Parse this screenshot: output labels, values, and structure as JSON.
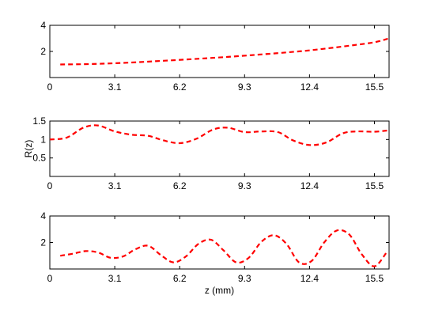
{
  "chart_data": [
    {
      "type": "line",
      "xlabel": "",
      "ylabel": "",
      "xlim": [
        0,
        16.2
      ],
      "ylim": [
        0,
        4
      ],
      "xticks": [
        0,
        3.1,
        6.2,
        9.3,
        12.4,
        15.5
      ],
      "xtick_labels": [
        "0",
        "3.1",
        "6.2",
        "9.3",
        "12.4",
        "15.5"
      ],
      "yticks": [
        2,
        4
      ],
      "ytick_labels": [
        "2",
        "4"
      ],
      "grid": false,
      "series": [
        {
          "color": "#ff0000",
          "style": "dashed",
          "x": [
            0.5,
            1.5,
            2.5,
            3.5,
            4.5,
            5.5,
            6.5,
            7.5,
            8.5,
            9.5,
            10.5,
            11.5,
            12.5,
            13.5,
            14.5,
            15.5,
            16.2
          ],
          "y": [
            1.0,
            1.02,
            1.06,
            1.12,
            1.2,
            1.29,
            1.38,
            1.48,
            1.58,
            1.7,
            1.82,
            1.95,
            2.1,
            2.28,
            2.48,
            2.7,
            3.0
          ]
        }
      ]
    },
    {
      "type": "line",
      "xlabel": "",
      "ylabel": "R(z)",
      "xlim": [
        0,
        16.2
      ],
      "ylim": [
        0,
        1.5
      ],
      "xticks": [
        0,
        3.1,
        6.2,
        9.3,
        12.4,
        15.5
      ],
      "xtick_labels": [
        "0",
        "3.1",
        "6.2",
        "9.3",
        "12.4",
        "15.5"
      ],
      "yticks": [
        0.5,
        1,
        1.5
      ],
      "ytick_labels": [
        "0.5",
        "1",
        "1.5"
      ],
      "grid": false,
      "series": [
        {
          "color": "#ff0000",
          "style": "dashed",
          "x": [
            0.0,
            0.8,
            1.6,
            2.3,
            3.1,
            3.9,
            4.7,
            5.4,
            6.2,
            7.0,
            7.8,
            8.5,
            9.3,
            10.1,
            10.9,
            11.6,
            12.4,
            13.2,
            14.0,
            14.7,
            15.5,
            16.2
          ],
          "y": [
            1.0,
            1.05,
            1.32,
            1.38,
            1.22,
            1.13,
            1.1,
            0.98,
            0.9,
            1.02,
            1.27,
            1.32,
            1.2,
            1.22,
            1.2,
            0.98,
            0.85,
            0.92,
            1.17,
            1.22,
            1.21,
            1.25
          ]
        }
      ]
    },
    {
      "type": "line",
      "xlabel": "z (mm)",
      "ylabel": "",
      "xlim": [
        0,
        16.2
      ],
      "ylim": [
        0,
        4
      ],
      "xticks": [
        0,
        3.1,
        6.2,
        9.3,
        12.4,
        15.5
      ],
      "xtick_labels": [
        "0",
        "3.1",
        "6.2",
        "9.3",
        "12.4",
        "15.5"
      ],
      "yticks": [
        2,
        4
      ],
      "ytick_labels": [
        "2",
        "4"
      ],
      "grid": false,
      "series": [
        {
          "color": "#ff0000",
          "style": "dashed",
          "x": [
            0.5,
            1.1,
            1.7,
            2.3,
            2.9,
            3.5,
            4.1,
            4.7,
            5.3,
            5.9,
            6.5,
            7.1,
            7.7,
            8.3,
            8.9,
            9.5,
            10.1,
            10.7,
            11.3,
            11.9,
            12.5,
            13.1,
            13.7,
            14.3,
            14.9,
            15.5,
            16.1
          ],
          "y": [
            1.0,
            1.15,
            1.35,
            1.25,
            0.85,
            0.95,
            1.5,
            1.75,
            1.05,
            0.5,
            0.95,
            1.9,
            2.2,
            1.4,
            0.5,
            0.85,
            2.05,
            2.55,
            1.9,
            0.5,
            0.6,
            2.0,
            2.9,
            2.6,
            1.1,
            0.2,
            1.3
          ]
        }
      ]
    }
  ]
}
